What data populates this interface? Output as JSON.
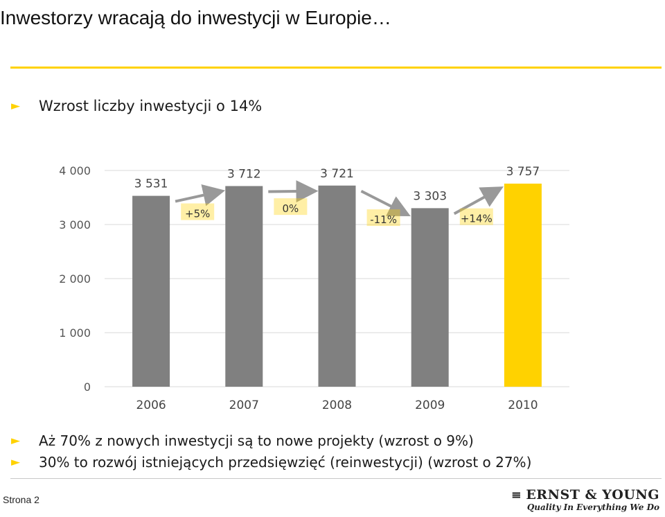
{
  "title": "Inwestorzy wracają do inwestycji w Europie…",
  "bullets_top": [
    {
      "icon": "triangle-right-icon",
      "text": "Wzrost liczby inwestycji o 14%"
    }
  ],
  "bullets_bottom": [
    {
      "icon": "triangle-right-icon",
      "text": "Aż 70% z nowych inwestycji są to nowe projekty (wzrost o 9%)"
    },
    {
      "icon": "triangle-right-icon",
      "text": "30% to rozwój istniejących przedsięwzięć (reinwestycji) (wzrost o 27%)"
    }
  ],
  "chart_data": {
    "type": "bar",
    "categories": [
      "2006",
      "2007",
      "2008",
      "2009",
      "2010"
    ],
    "values": [
      3531,
      3712,
      3721,
      3303,
      3757
    ],
    "value_labels": [
      "3 531",
      "3 712",
      "3 721",
      "3 303",
      "3 757"
    ],
    "ylim": [
      0,
      4000
    ],
    "yticks": [
      0,
      1000,
      2000,
      3000,
      4000
    ],
    "ytick_labels": [
      "0",
      "1 000",
      "2 000",
      "3 000",
      "4 000"
    ],
    "grid": true,
    "bar_colors": [
      "#808080",
      "#808080",
      "#808080",
      "#808080",
      "#ffd200"
    ],
    "changes": [
      {
        "label": "+5%",
        "direction": "up"
      },
      {
        "label": "0%",
        "direction": "flat"
      },
      {
        "label": "-11%",
        "direction": "down"
      },
      {
        "label": "+14%",
        "direction": "up"
      }
    ],
    "accent_color": "#ffd200"
  },
  "footer": {
    "page_label": "Strona 2",
    "logo_text": "ERNST & YOUNG",
    "logo_tagline": "Quality In Everything We Do"
  }
}
